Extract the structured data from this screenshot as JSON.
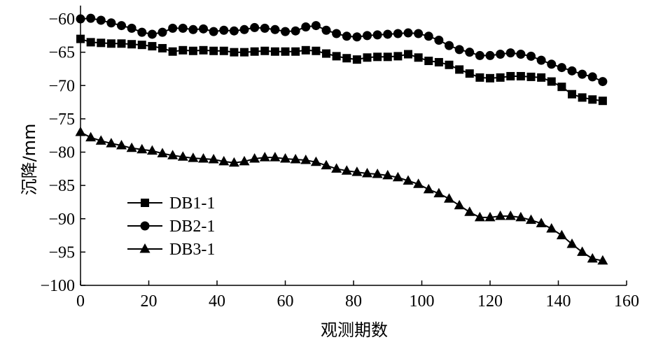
{
  "chart_data": {
    "type": "line",
    "title": "",
    "xlabel": "观测期数",
    "ylabel": "沉降/mm",
    "xlim": [
      0,
      160
    ],
    "ylim": [
      -100,
      -58
    ],
    "x_ticks": [
      0,
      20,
      40,
      60,
      80,
      100,
      120,
      140,
      160
    ],
    "y_ticks": [
      -60,
      -65,
      -70,
      -75,
      -80,
      -85,
      -90,
      -95,
      -100
    ],
    "x_tick_labels": [
      "0",
      "20",
      "40",
      "60",
      "80",
      "100",
      "120",
      "140",
      "160"
    ],
    "y_tick_labels": [
      "−60",
      "−65",
      "−70",
      "−75",
      "−80",
      "−85",
      "−90",
      "−95",
      "−100"
    ],
    "grid": false,
    "legend_position": "lower-left",
    "series": [
      {
        "name": "DB1-1",
        "marker": "square",
        "x": [
          0,
          3,
          6,
          9,
          12,
          15,
          18,
          21,
          24,
          27,
          30,
          33,
          36,
          39,
          42,
          45,
          48,
          51,
          54,
          57,
          60,
          63,
          66,
          69,
          72,
          75,
          78,
          81,
          84,
          87,
          90,
          93,
          96,
          99,
          102,
          105,
          108,
          111,
          114,
          117,
          120,
          123,
          126,
          129,
          132,
          135,
          138,
          141,
          144,
          147,
          150,
          153
        ],
        "values": [
          -63.0,
          -63.5,
          -63.6,
          -63.7,
          -63.7,
          -63.8,
          -63.9,
          -64.1,
          -64.4,
          -64.9,
          -64.7,
          -64.8,
          -64.7,
          -64.8,
          -64.8,
          -65.0,
          -65.0,
          -64.9,
          -64.8,
          -64.9,
          -64.9,
          -64.9,
          -64.7,
          -64.8,
          -65.2,
          -65.6,
          -65.9,
          -66.1,
          -65.8,
          -65.7,
          -65.7,
          -65.6,
          -65.3,
          -65.8,
          -66.3,
          -66.5,
          -66.9,
          -67.6,
          -68.2,
          -68.8,
          -68.9,
          -68.8,
          -68.6,
          -68.6,
          -68.7,
          -68.8,
          -69.4,
          -70.2,
          -71.3,
          -71.8,
          -72.1,
          -72.3
        ]
      },
      {
        "name": "DB2-1",
        "marker": "circle",
        "x": [
          0,
          3,
          6,
          9,
          12,
          15,
          18,
          21,
          24,
          27,
          30,
          33,
          36,
          39,
          42,
          45,
          48,
          51,
          54,
          57,
          60,
          63,
          66,
          69,
          72,
          75,
          78,
          81,
          84,
          87,
          90,
          93,
          96,
          99,
          102,
          105,
          108,
          111,
          114,
          117,
          120,
          123,
          126,
          129,
          132,
          135,
          138,
          141,
          144,
          147,
          150,
          153
        ],
        "values": [
          -60.0,
          -59.9,
          -60.2,
          -60.6,
          -61.0,
          -61.4,
          -62.0,
          -62.3,
          -62.0,
          -61.4,
          -61.4,
          -61.6,
          -61.5,
          -61.9,
          -61.7,
          -61.8,
          -61.6,
          -61.3,
          -61.4,
          -61.6,
          -61.9,
          -61.8,
          -61.2,
          -61.0,
          -61.7,
          -62.2,
          -62.6,
          -62.7,
          -62.5,
          -62.4,
          -62.3,
          -62.2,
          -62.1,
          -62.2,
          -62.6,
          -63.2,
          -64.0,
          -64.6,
          -65.0,
          -65.5,
          -65.5,
          -65.3,
          -65.1,
          -65.3,
          -65.6,
          -66.2,
          -66.8,
          -67.3,
          -67.8,
          -68.3,
          -68.7,
          -69.4
        ]
      },
      {
        "name": "DB3-1",
        "marker": "triangle",
        "x": [
          0,
          3,
          6,
          9,
          12,
          15,
          18,
          21,
          24,
          27,
          30,
          33,
          36,
          39,
          42,
          45,
          48,
          51,
          54,
          57,
          60,
          63,
          66,
          69,
          72,
          75,
          78,
          81,
          84,
          87,
          90,
          93,
          96,
          99,
          102,
          105,
          108,
          111,
          114,
          117,
          120,
          123,
          126,
          129,
          132,
          135,
          138,
          141,
          144,
          147,
          150,
          153
        ],
        "values": [
          -77.0,
          -77.8,
          -78.3,
          -78.7,
          -79.0,
          -79.4,
          -79.6,
          -79.8,
          -80.2,
          -80.5,
          -80.7,
          -80.9,
          -81.0,
          -81.1,
          -81.4,
          -81.6,
          -81.4,
          -81.0,
          -80.8,
          -80.8,
          -81.0,
          -81.1,
          -81.2,
          -81.5,
          -82.0,
          -82.5,
          -82.8,
          -83.0,
          -83.2,
          -83.3,
          -83.5,
          -83.8,
          -84.3,
          -84.8,
          -85.6,
          -86.2,
          -87.0,
          -88.0,
          -89.0,
          -89.8,
          -89.8,
          -89.6,
          -89.6,
          -89.8,
          -90.2,
          -90.7,
          -91.5,
          -92.5,
          -93.8,
          -95.0,
          -96.0,
          -96.3
        ]
      }
    ]
  }
}
